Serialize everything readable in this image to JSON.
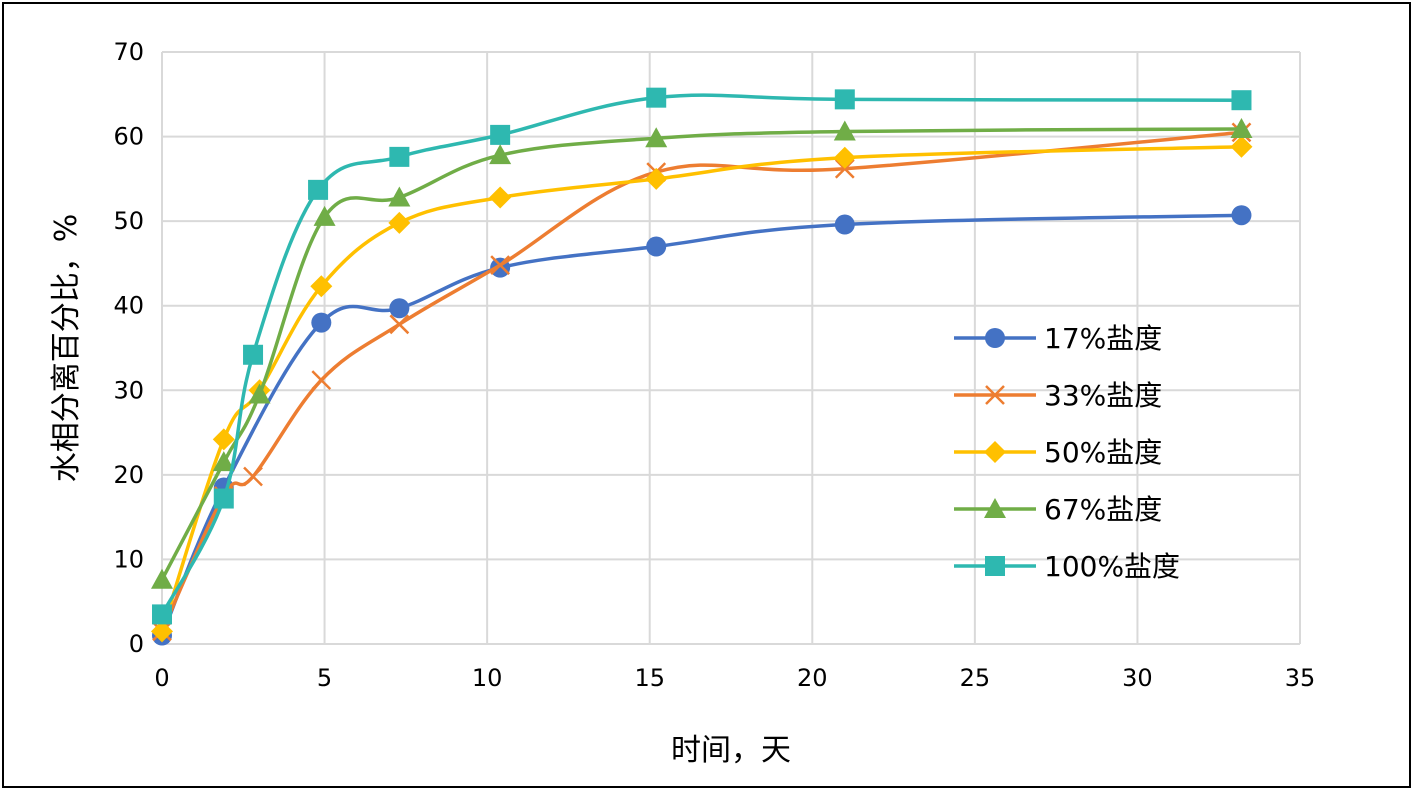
{
  "chart_data": {
    "type": "line",
    "title": "",
    "xlabel": "时间，天",
    "ylabel": "水相分离百分比，%",
    "xlim": [
      0,
      35
    ],
    "ylim": [
      0,
      70
    ],
    "xticks": [
      0,
      5,
      10,
      15,
      20,
      25,
      30,
      35
    ],
    "yticks": [
      0,
      10,
      20,
      30,
      40,
      50,
      60,
      70
    ],
    "grid": true,
    "legend_position": "right",
    "series": [
      {
        "name": "17%盐度",
        "color": "#4472C4",
        "marker": "circle",
        "x": [
          0,
          1.9,
          4.9,
          7.3,
          10.4,
          15.2,
          21.0,
          33.2
        ],
        "y": [
          1.0,
          18.5,
          38.0,
          39.7,
          44.5,
          47.0,
          49.6,
          50.7
        ]
      },
      {
        "name": "33%盐度",
        "color": "#ED7D31",
        "marker": "x",
        "x": [
          0,
          1.9,
          2.8,
          4.9,
          7.3,
          10.4,
          15.2,
          21.0,
          33.2
        ],
        "y": [
          1.5,
          17.5,
          19.8,
          31.2,
          37.8,
          44.8,
          55.8,
          56.2,
          60.5
        ]
      },
      {
        "name": "50%盐度",
        "color": "#FFC000",
        "marker": "diamond",
        "x": [
          0,
          1.9,
          3.0,
          4.9,
          7.3,
          10.4,
          15.2,
          21.0,
          33.2
        ],
        "y": [
          1.5,
          24.2,
          30.0,
          42.3,
          49.8,
          52.8,
          55.0,
          57.5,
          58.8
        ]
      },
      {
        "name": "67%盐度",
        "color": "#70AD47",
        "marker": "triangle",
        "x": [
          0,
          1.9,
          3.0,
          5.0,
          7.3,
          10.4,
          15.2,
          21.0,
          33.2
        ],
        "y": [
          7.6,
          21.5,
          29.5,
          50.5,
          52.8,
          57.8,
          59.8,
          60.6,
          60.9
        ]
      },
      {
        "name": "100%盐度",
        "color": "#2EB8B0",
        "marker": "square",
        "x": [
          0,
          1.9,
          2.8,
          4.8,
          7.3,
          10.4,
          15.2,
          21.0,
          33.2
        ],
        "y": [
          3.5,
          17.2,
          34.2,
          53.7,
          57.6,
          60.2,
          64.6,
          64.4,
          64.3
        ]
      }
    ]
  }
}
